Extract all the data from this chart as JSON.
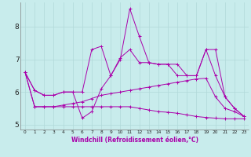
{
  "xlabel": "Windchill (Refroidissement éolien,°C)",
  "background_color": "#c8ecec",
  "grid_color": "#b0d8d8",
  "line_color": "#aa00aa",
  "xlim": [
    -0.5,
    23.5
  ],
  "ylim": [
    4.85,
    8.75
  ],
  "xticks": [
    0,
    1,
    2,
    3,
    4,
    5,
    6,
    7,
    8,
    9,
    10,
    11,
    12,
    13,
    14,
    15,
    16,
    17,
    18,
    19,
    20,
    21,
    22,
    23
  ],
  "yticks": [
    5,
    6,
    7,
    8
  ],
  "series": [
    [
      6.6,
      6.05,
      5.9,
      5.9,
      6.0,
      6.0,
      6.0,
      7.3,
      7.4,
      6.5,
      7.0,
      8.55,
      7.7,
      6.9,
      6.85,
      6.85,
      6.85,
      6.5,
      6.5,
      7.3,
      6.5,
      5.85,
      5.5,
      5.25
    ],
    [
      6.6,
      6.05,
      5.9,
      5.9,
      6.0,
      6.0,
      5.2,
      5.4,
      6.1,
      6.5,
      7.05,
      7.3,
      6.9,
      6.9,
      6.85,
      6.85,
      6.5,
      6.5,
      6.5,
      7.3,
      7.3,
      5.85,
      5.5,
      5.25
    ],
    [
      6.6,
      5.55,
      5.55,
      5.55,
      5.6,
      5.65,
      5.7,
      5.8,
      5.9,
      5.95,
      6.0,
      6.05,
      6.1,
      6.15,
      6.2,
      6.25,
      6.3,
      6.35,
      6.4,
      6.42,
      5.85,
      5.5,
      5.4,
      5.25
    ],
    [
      6.6,
      5.55,
      5.55,
      5.55,
      5.55,
      5.55,
      5.55,
      5.55,
      5.55,
      5.55,
      5.55,
      5.55,
      5.5,
      5.45,
      5.4,
      5.38,
      5.35,
      5.3,
      5.25,
      5.22,
      5.2,
      5.18,
      5.18,
      5.18
    ]
  ]
}
